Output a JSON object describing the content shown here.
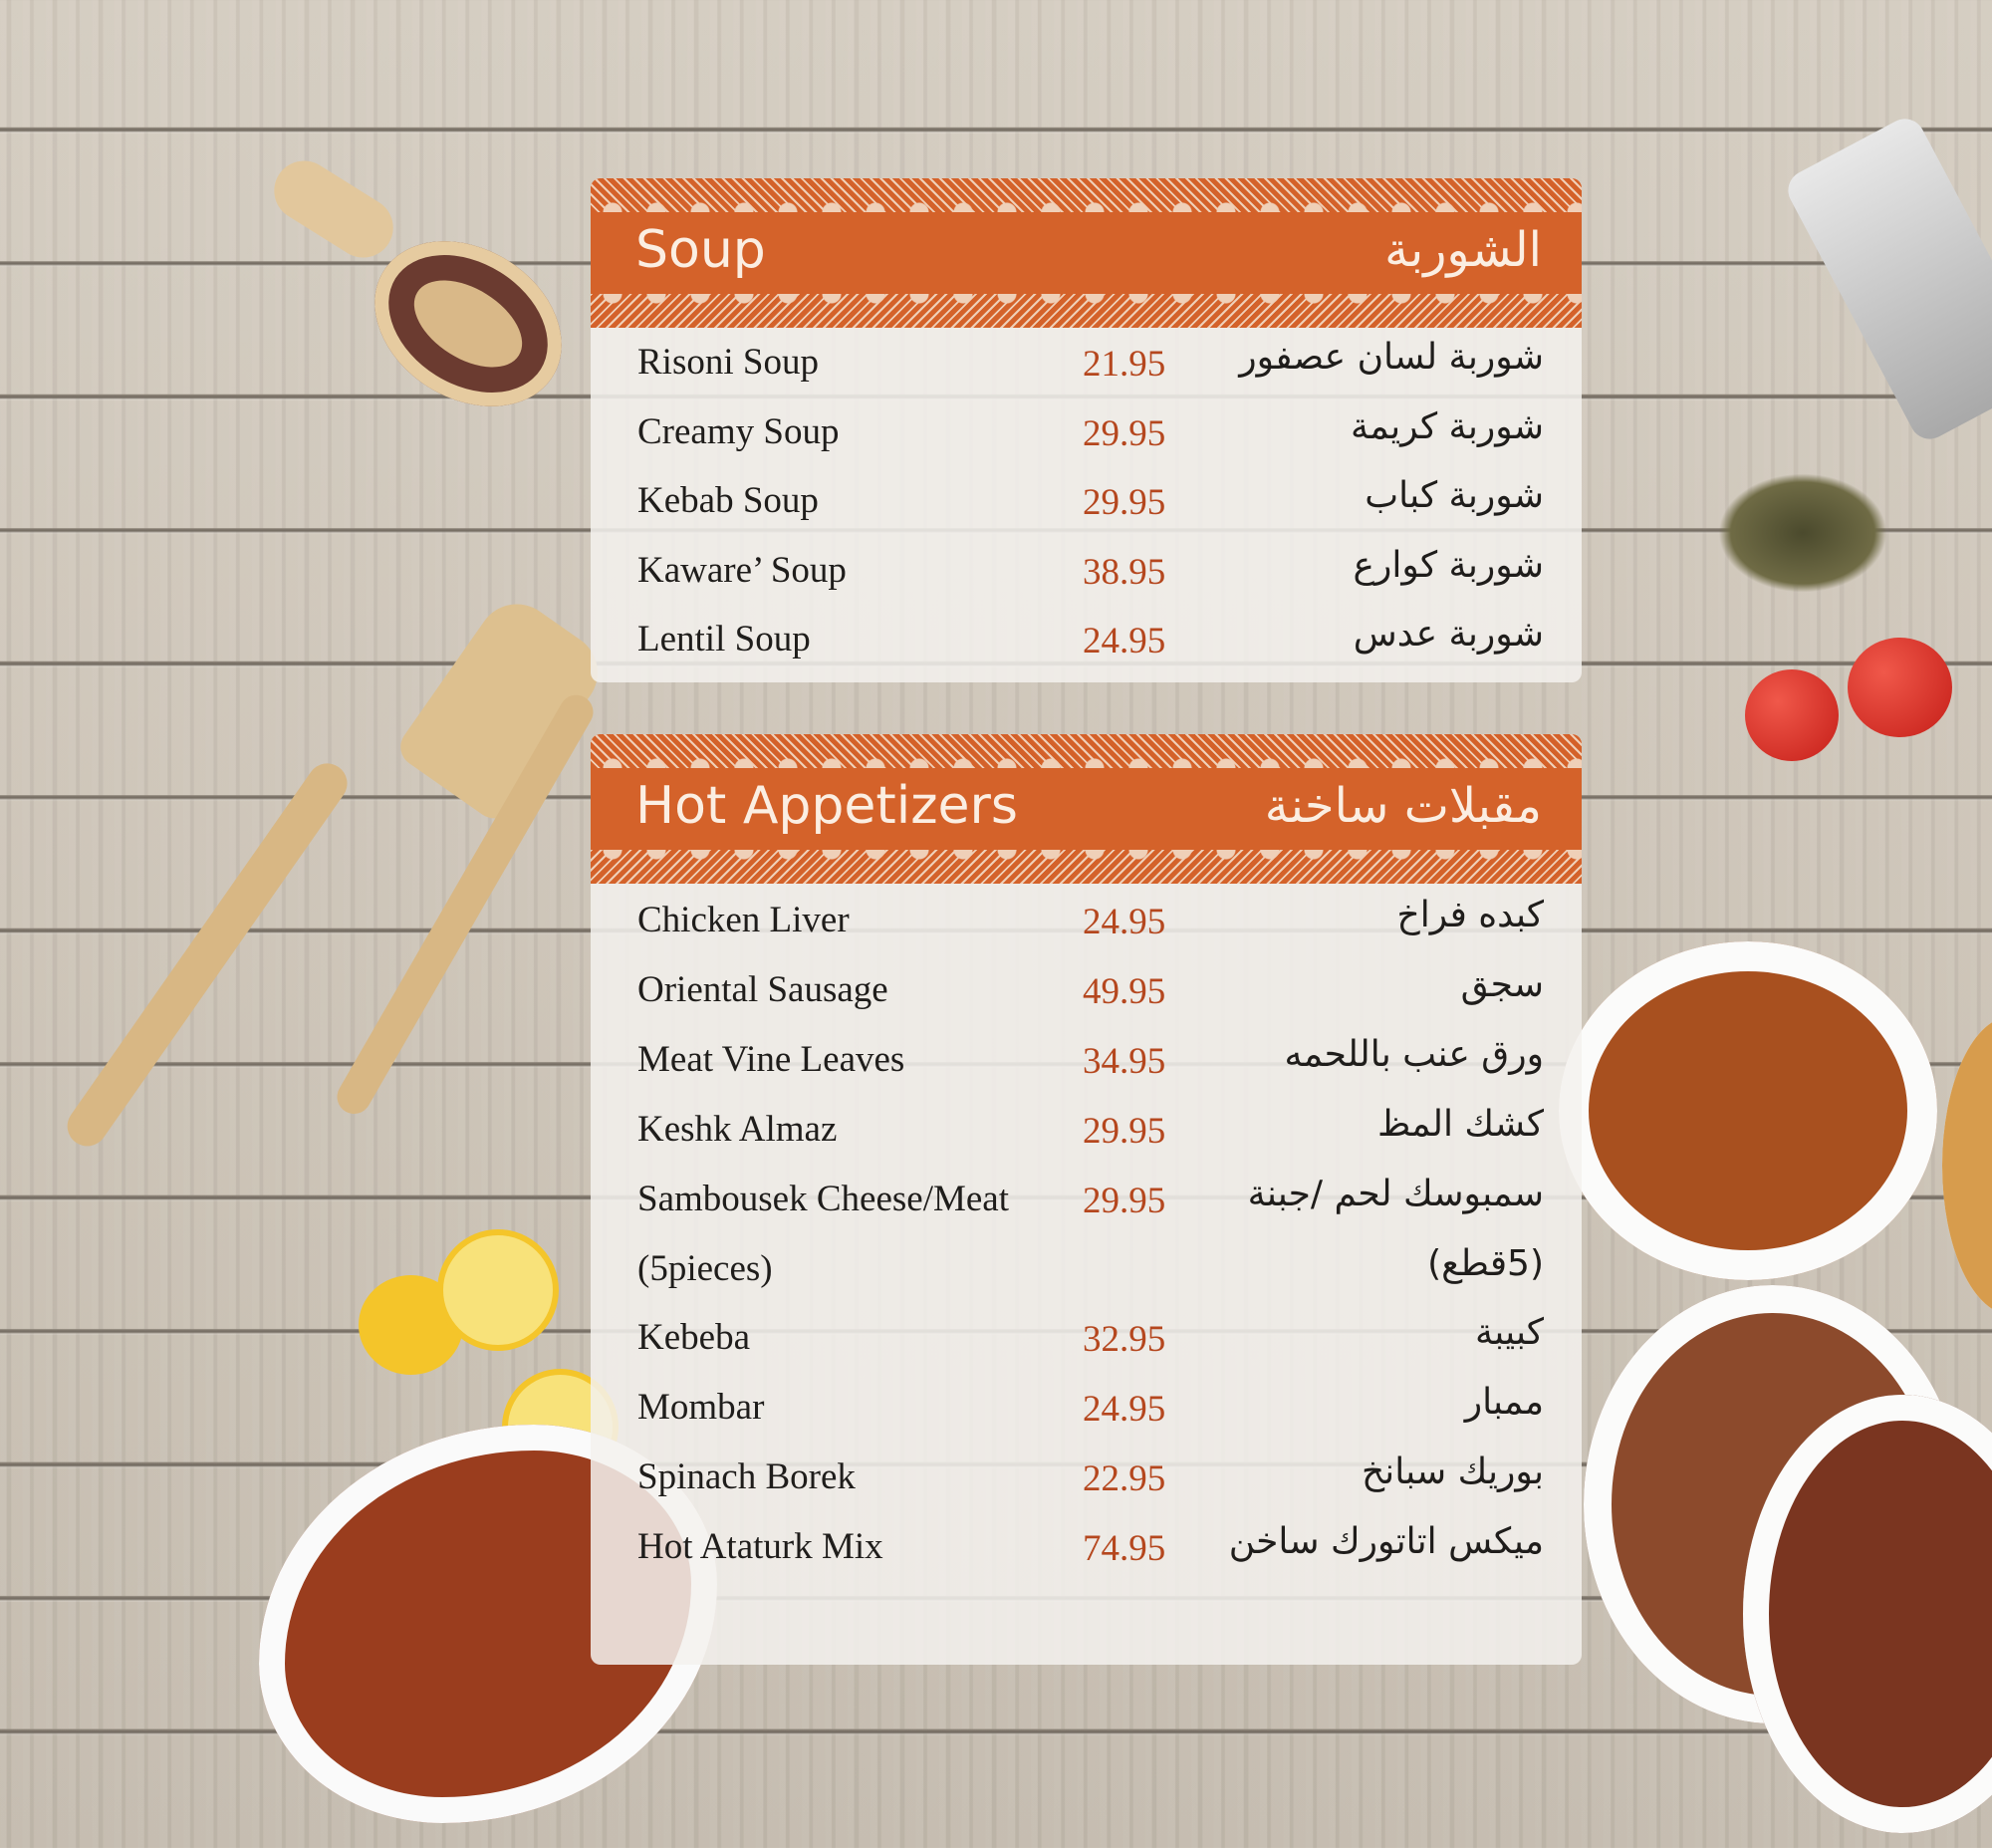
{
  "colors": {
    "accent": "#d4622a",
    "price": "#b5471e",
    "text": "#1f1d1b"
  },
  "soup": {
    "title_en": "Soup",
    "title_ar": "الشوربة",
    "items": [
      {
        "en": "Risoni Soup",
        "price": "21.95",
        "ar": "شوربة لسان عصفور"
      },
      {
        "en": "Creamy Soup",
        "price": "29.95",
        "ar": "شوربة كريمة"
      },
      {
        "en": "Kebab Soup",
        "price": "29.95",
        "ar": "شوربة كباب"
      },
      {
        "en": "Kaware’ Soup",
        "price": "38.95",
        "ar": "شوربة كوارع"
      },
      {
        "en": "Lentil Soup",
        "price": "24.95",
        "ar": "شوربة عدس"
      }
    ]
  },
  "hot": {
    "title_en": "Hot Appetizers",
    "title_ar": "مقبلات ساخنة",
    "items": [
      {
        "en": "Chicken Liver",
        "price": "24.95",
        "ar": "كبده فراخ"
      },
      {
        "en": "Oriental Sausage",
        "price": "49.95",
        "ar": "سجق"
      },
      {
        "en": "Meat Vine Leaves",
        "price": "34.95",
        "ar": "ورق عنب باللحمه"
      },
      {
        "en": "Keshk Almaz",
        "price": "29.95",
        "ar": "كشك المظ"
      },
      {
        "en": "Sambousek Cheese/Meat",
        "price": "29.95",
        "ar": "سمبوسك لحم /جبنة"
      },
      {
        "en": "(5pieces)",
        "price": "",
        "ar": "(5قطع)"
      },
      {
        "en": "Kebeba",
        "price": "32.95",
        "ar": "كبيبة"
      },
      {
        "en": "Mombar",
        "price": "24.95",
        "ar": "ممبار"
      },
      {
        "en": "Spinach Borek",
        "price": "22.95",
        "ar": "بوريك سبانخ"
      },
      {
        "en": "Hot Ataturk Mix",
        "price": "74.95",
        "ar": "ميكس اتاتورك ساخن"
      }
    ]
  }
}
